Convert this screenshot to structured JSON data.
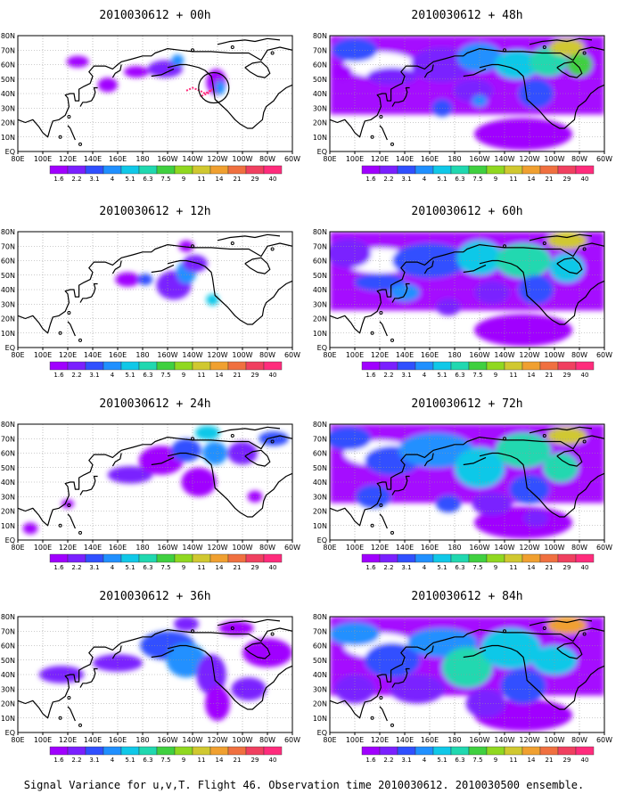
{
  "caption": "Signal Variance for u,v,T. Flight 46. Observation time 2010030612. 2010030500 ensemble.",
  "colorbar": {
    "labels": [
      "1.6",
      "2.2",
      "3.1",
      "4",
      "5.1",
      "6.3",
      "7.5",
      "9",
      "11",
      "14",
      "21",
      "29",
      "40"
    ],
    "colors": [
      "#a000ff",
      "#7a20ff",
      "#3050ff",
      "#2090ff",
      "#10c8e8",
      "#20d8b0",
      "#40d040",
      "#90d820",
      "#d0c830",
      "#f0a030",
      "#f07040",
      "#f04060",
      "#ff2c7c"
    ]
  },
  "axes": {
    "x_ticks": [
      "80E",
      "100E",
      "120E",
      "140E",
      "160E",
      "180",
      "160W",
      "140W",
      "120W",
      "100W",
      "80W",
      "60W"
    ],
    "y_ticks": [
      "EQ",
      "10N",
      "20N",
      "30N",
      "40N",
      "50N",
      "60N",
      "70N",
      "80N"
    ]
  },
  "chart_data": [
    {
      "type": "heatmap",
      "title": "2010030612 + 00h",
      "forecast_hour": 0
    },
    {
      "type": "heatmap",
      "title": "2010030612 + 48h",
      "forecast_hour": 48
    },
    {
      "type": "heatmap",
      "title": "2010030612 + 12h",
      "forecast_hour": 12
    },
    {
      "type": "heatmap",
      "title": "2010030612 + 60h",
      "forecast_hour": 60
    },
    {
      "type": "heatmap",
      "title": "2010030612 + 24h",
      "forecast_hour": 24
    },
    {
      "type": "heatmap",
      "title": "2010030612 + 72h",
      "forecast_hour": 72
    },
    {
      "type": "heatmap",
      "title": "2010030612 + 36h",
      "forecast_hour": 36
    },
    {
      "type": "heatmap",
      "title": "2010030612 + 84h",
      "forecast_hour": 84
    }
  ]
}
